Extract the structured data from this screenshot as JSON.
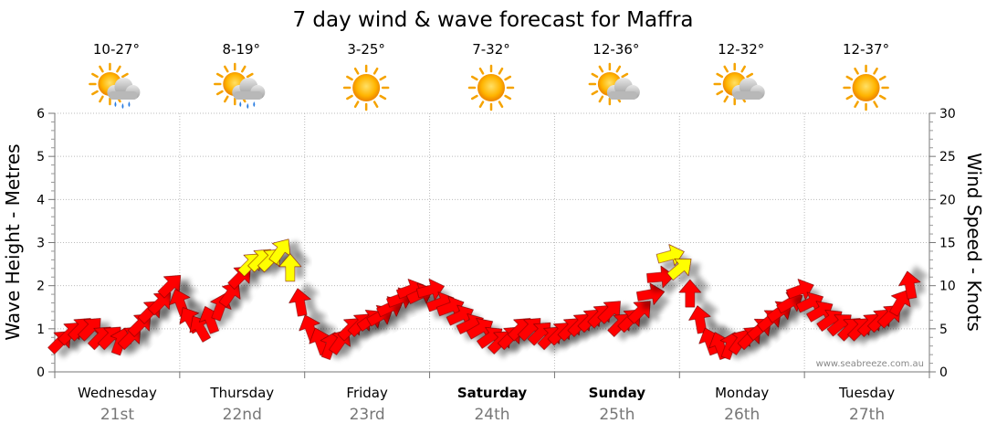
{
  "chart_data": {
    "type": "line",
    "title": "7 day wind & wave forecast for Maffra",
    "ylabel_left": "Wave Height - Metres",
    "ylabel_right": "Wind Speed - Knots",
    "ylim_left": [
      0,
      6
    ],
    "ylim_right": [
      0,
      30
    ],
    "yticks_left": [
      "0",
      "1",
      "2",
      "3",
      "4",
      "5",
      "6"
    ],
    "yticks_right": [
      "0",
      "5",
      "10",
      "15",
      "20",
      "25",
      "30"
    ],
    "days": [
      {
        "name": "Wednesday",
        "date": "21st",
        "temp": "10-27°",
        "weather": "partly-cloudy-rain-icon",
        "bold": false
      },
      {
        "name": "Thursday",
        "date": "22nd",
        "temp": "8-19°",
        "weather": "partly-cloudy-rain-icon",
        "bold": false
      },
      {
        "name": "Friday",
        "date": "23rd",
        "temp": "3-25°",
        "weather": "sunny-icon",
        "bold": false
      },
      {
        "name": "Saturday",
        "date": "24th",
        "temp": "7-32°",
        "weather": "sunny-icon",
        "bold": true
      },
      {
        "name": "Sunday",
        "date": "25th",
        "temp": "12-36°",
        "weather": "partly-cloudy-icon",
        "bold": true
      },
      {
        "name": "Monday",
        "date": "26th",
        "temp": "12-32°",
        "weather": "partly-cloudy-icon",
        "bold": false
      },
      {
        "name": "Tuesday",
        "date": "27th",
        "temp": "12-37°",
        "weather": "sunny-icon",
        "bold": false
      }
    ],
    "wind_series": {
      "name": "Wind Speed",
      "units": "knots",
      "x_days": [
        0.0,
        0.08,
        0.16,
        0.24,
        0.32,
        0.4,
        0.48,
        0.56,
        0.64,
        0.72,
        0.8,
        0.88,
        0.96,
        1.04,
        1.12,
        1.2,
        1.28,
        1.36,
        1.44,
        1.52,
        1.6,
        1.68,
        1.76,
        1.84,
        1.92,
        2.0,
        2.08,
        2.16,
        2.24,
        2.32,
        2.4,
        2.48,
        2.56,
        2.64,
        2.72,
        2.8,
        2.88,
        2.96,
        3.04,
        3.12,
        3.2,
        3.28,
        3.36,
        3.44,
        3.52,
        3.6,
        3.68,
        3.76,
        3.84,
        3.92,
        4.0,
        4.08,
        4.16,
        4.24,
        4.32,
        4.4,
        4.48,
        4.56,
        4.64,
        4.72,
        4.8,
        4.88,
        4.96,
        5.04,
        5.12,
        5.2,
        5.28,
        5.36,
        5.44,
        5.52,
        5.6,
        5.68,
        5.76,
        5.84,
        5.92,
        6.0,
        6.08,
        6.16,
        6.24,
        6.32,
        6.4,
        6.48,
        6.56,
        6.64,
        6.72,
        6.8
      ],
      "speed": [
        3.5,
        4.5,
        5,
        5,
        4,
        4,
        3.5,
        4,
        5.5,
        7,
        8,
        10,
        8,
        6,
        5,
        6,
        7.5,
        9,
        11,
        12.5,
        13,
        13,
        14,
        12,
        8,
        5,
        3.5,
        3,
        3.5,
        5,
        5.5,
        6,
        6.5,
        7.5,
        8.5,
        9.5,
        9,
        9.5,
        8,
        7.5,
        6.5,
        5.5,
        5,
        4,
        3.5,
        4,
        5,
        5,
        4.5,
        4,
        4.5,
        5,
        5.5,
        6,
        6.5,
        7,
        5.5,
        6,
        7,
        9,
        11,
        13.5,
        12,
        9,
        6,
        3.5,
        3,
        3,
        3.5,
        4,
        5,
        6,
        7,
        8,
        9.5,
        8,
        7,
        6,
        5.5,
        5,
        5,
        5.5,
        6,
        6.5,
        8,
        10
      ],
      "direction_deg": [
        225,
        225,
        225,
        225,
        225,
        225,
        200,
        225,
        225,
        225,
        225,
        225,
        160,
        150,
        150,
        160,
        200,
        215,
        225,
        225,
        225,
        225,
        215,
        180,
        170,
        160,
        160,
        200,
        215,
        225,
        225,
        235,
        240,
        245,
        250,
        250,
        245,
        255,
        250,
        250,
        245,
        245,
        240,
        235,
        225,
        225,
        225,
        225,
        225,
        225,
        225,
        225,
        225,
        225,
        225,
        225,
        225,
        225,
        225,
        260,
        265,
        255,
        230,
        180,
        170,
        160,
        160,
        200,
        215,
        225,
        230,
        230,
        235,
        240,
        250,
        245,
        240,
        235,
        230,
        225,
        225,
        225,
        225,
        225,
        210,
        170
      ],
      "highlight_threshold_knots": 12,
      "highlight_color": "#ffff00",
      "arrow_color": "#ff0000"
    },
    "credit": "www.seabreeze.com.au",
    "grid": true
  }
}
